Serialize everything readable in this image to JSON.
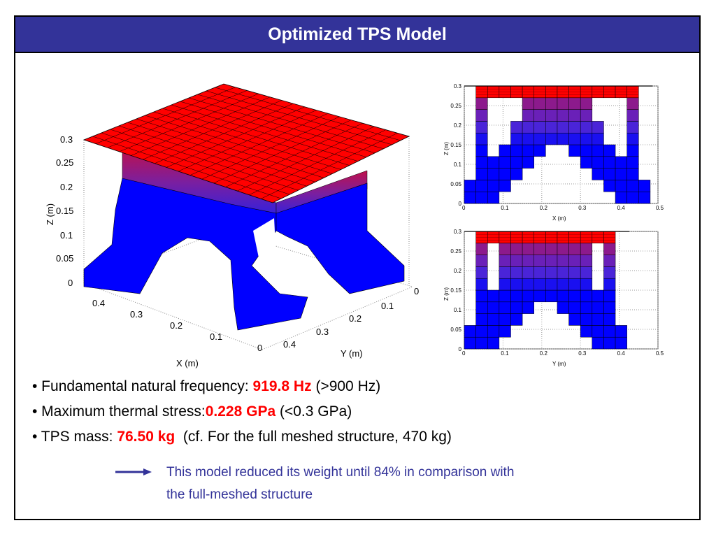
{
  "slide": {
    "title": "Optimized TPS Model"
  },
  "bullets": [
    {
      "prefix": "• Fundamental natural frequency: ",
      "value": "919.8 Hz",
      "suffix": " (>900 Hz)"
    },
    {
      "prefix": "• Maximum thermal stress:",
      "value": "0.228 GPa",
      "suffix": " (<0.3 GPa)"
    },
    {
      "prefix": "• TPS mass: ",
      "value": "76.50 kg",
      "suffix": "  (cf. For the full meshed structure, 470 kg)"
    }
  ],
  "note": {
    "line1": "This model reduced its weight until 84% in comparison with",
    "line2": "the full-meshed structure"
  },
  "colors": {
    "title_bg": "#333399",
    "highlight": "#ff0000",
    "note": "#333399",
    "solid": "#0000ff",
    "top": "#ff0000"
  },
  "chart_data": [
    {
      "type": "3d-voxel",
      "title": "",
      "xlabel": "X (m)",
      "ylabel": "Y (m)",
      "zlabel": "Z (m)",
      "x_ticks": [
        "0.4",
        "0.3",
        "0.2",
        "0.1",
        "0"
      ],
      "y_ticks": [
        "0",
        "0.1",
        "0.2",
        "0.3",
        "0.4"
      ],
      "z_ticks": [
        "0.3",
        "0.25",
        "0.2",
        "0.15",
        "0.1",
        "0.05",
        "0"
      ],
      "zlim": [
        0,
        0.3
      ]
    },
    {
      "type": "heatmap",
      "view": "X-Z section",
      "xlabel": "X (m)",
      "ylabel": "Z (m)",
      "xlim": [
        0,
        0.5
      ],
      "ylim": [
        0,
        0.3
      ],
      "x_ticks": [
        "0",
        "0.1",
        "0.2",
        "0.3",
        "0.4",
        "0.5"
      ],
      "y_ticks": [
        "0",
        "0.05",
        "0.1",
        "0.15",
        "0.2",
        "0.25",
        "0.3"
      ],
      "cell_size": 0.03,
      "filled_rows_per_column": [
        [
          0,
          1
        ],
        [
          0,
          1,
          2,
          3,
          4,
          5,
          6,
          7,
          8,
          9
        ],
        [
          0,
          1,
          2,
          3,
          9
        ],
        [
          1,
          2,
          3,
          4,
          9
        ],
        [
          2,
          3,
          4,
          5,
          6,
          9
        ],
        [
          3,
          4,
          5,
          6,
          7,
          8,
          9
        ],
        [
          4,
          5,
          6,
          7,
          8,
          9
        ],
        [
          5,
          6,
          7,
          8,
          9
        ],
        [
          5,
          6,
          7,
          8,
          9
        ],
        [
          4,
          5,
          6,
          7,
          8,
          9
        ],
        [
          3,
          4,
          5,
          6,
          7,
          8,
          9
        ],
        [
          2,
          3,
          4,
          5,
          6,
          9
        ],
        [
          1,
          2,
          3,
          4,
          9
        ],
        [
          0,
          1,
          2,
          3,
          9
        ],
        [
          0,
          1,
          2,
          3,
          4,
          5,
          6,
          7,
          8,
          9
        ],
        [
          0,
          1
        ]
      ]
    },
    {
      "type": "heatmap",
      "view": "Y-Z section",
      "xlabel": "Y (m)",
      "ylabel": "Z (m)",
      "xlim": [
        0,
        0.5
      ],
      "ylim": [
        0,
        0.3
      ],
      "x_ticks": [
        "0",
        "0.1",
        "0.2",
        "0.3",
        "0.4",
        "0.5"
      ],
      "y_ticks": [
        "0",
        "0.05",
        "0.1",
        "0.15",
        "0.2",
        "0.25",
        "0.3"
      ],
      "cell_size": 0.03,
      "filled_rows_per_column": [
        [
          0,
          1
        ],
        [
          0,
          1,
          2,
          3,
          4,
          5,
          6,
          7,
          8,
          9
        ],
        [
          0,
          1,
          2,
          3,
          4,
          9
        ],
        [
          1,
          2,
          3,
          4,
          5,
          6,
          7,
          8,
          9
        ],
        [
          2,
          3,
          4,
          5,
          6,
          7,
          8,
          9
        ],
        [
          3,
          4,
          5,
          6,
          7,
          8,
          9
        ],
        [
          4,
          5,
          6,
          7,
          8,
          9
        ],
        [
          4,
          5,
          6,
          7,
          8,
          9
        ],
        [
          3,
          4,
          5,
          6,
          7,
          8,
          9
        ],
        [
          2,
          3,
          4,
          5,
          6,
          7,
          8,
          9
        ],
        [
          1,
          2,
          3,
          4,
          5,
          6,
          7,
          8,
          9
        ],
        [
          0,
          1,
          2,
          3,
          4,
          9
        ],
        [
          0,
          1,
          2,
          3,
          4,
          5,
          6,
          7,
          8,
          9
        ],
        [
          0,
          1
        ]
      ]
    }
  ]
}
